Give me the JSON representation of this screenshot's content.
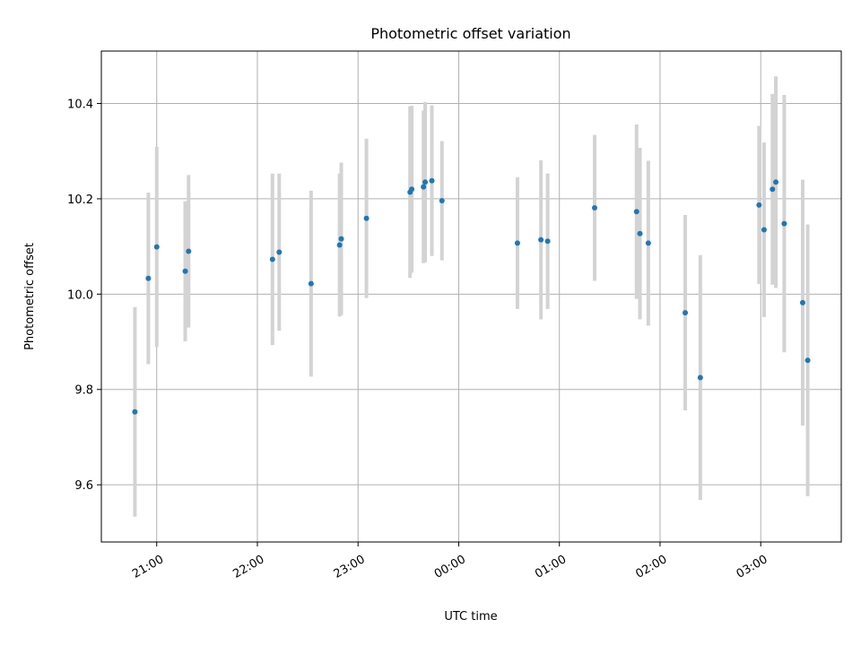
{
  "chart_data": {
    "type": "scatter",
    "title": "Photometric offset variation",
    "xlabel": "UTC time",
    "ylabel": "Photometric offset",
    "x_axis": "time",
    "x_ticks": [
      "21:00",
      "22:00",
      "23:00",
      "00:00",
      "01:00",
      "02:00",
      "03:00"
    ],
    "xlim": [
      "20:27",
      "03:48"
    ],
    "y_ticks": [
      9.6,
      9.8,
      10.0,
      10.2,
      10.4
    ],
    "ylim": [
      9.48,
      10.51
    ],
    "grid": true,
    "colors": {
      "points": "#1f77b4",
      "errorbars": "#d3d3d3"
    },
    "points": [
      {
        "time": "20:47",
        "y": 9.753,
        "err": 0.22
      },
      {
        "time": "20:55",
        "y": 10.033,
        "err": 0.18
      },
      {
        "time": "21:00",
        "y": 10.099,
        "err": 0.21
      },
      {
        "time": "21:17",
        "y": 10.048,
        "err": 0.147
      },
      {
        "time": "21:19",
        "y": 10.09,
        "err": 0.16
      },
      {
        "time": "22:09",
        "y": 10.073,
        "err": 0.18
      },
      {
        "time": "22:13",
        "y": 10.088,
        "err": 0.165
      },
      {
        "time": "22:32",
        "y": 10.022,
        "err": 0.195
      },
      {
        "time": "22:49",
        "y": 10.103,
        "err": 0.15
      },
      {
        "time": "22:50",
        "y": 10.116,
        "err": 0.16
      },
      {
        "time": "23:05",
        "y": 10.159,
        "err": 0.167
      },
      {
        "time": "23:31",
        "y": 10.214,
        "err": 0.18
      },
      {
        "time": "23:32",
        "y": 10.22,
        "err": 0.175
      },
      {
        "time": "23:39",
        "y": 10.225,
        "err": 0.16
      },
      {
        "time": "23:40",
        "y": 10.235,
        "err": 0.168
      },
      {
        "time": "23:44",
        "y": 10.238,
        "err": 0.158
      },
      {
        "time": "23:50",
        "y": 10.196,
        "err": 0.125
      },
      {
        "time": "00:35",
        "y": 10.107,
        "err": 0.138
      },
      {
        "time": "00:49",
        "y": 10.114,
        "err": 0.167
      },
      {
        "time": "00:53",
        "y": 10.111,
        "err": 0.142
      },
      {
        "time": "01:21",
        "y": 10.181,
        "err": 0.153
      },
      {
        "time": "01:46",
        "y": 10.173,
        "err": 0.183
      },
      {
        "time": "01:48",
        "y": 10.127,
        "err": 0.18
      },
      {
        "time": "01:53",
        "y": 10.107,
        "err": 0.173
      },
      {
        "time": "02:15",
        "y": 9.961,
        "err": 0.205
      },
      {
        "time": "02:24",
        "y": 9.825,
        "err": 0.257
      },
      {
        "time": "02:59",
        "y": 10.187,
        "err": 0.166
      },
      {
        "time": "03:02",
        "y": 10.135,
        "err": 0.183
      },
      {
        "time": "03:07",
        "y": 10.22,
        "err": 0.2
      },
      {
        "time": "03:09",
        "y": 10.235,
        "err": 0.222
      },
      {
        "time": "03:14",
        "y": 10.148,
        "err": 0.27
      },
      {
        "time": "03:25",
        "y": 9.982,
        "err": 0.258
      },
      {
        "time": "03:28",
        "y": 9.861,
        "err": 0.285
      }
    ]
  }
}
